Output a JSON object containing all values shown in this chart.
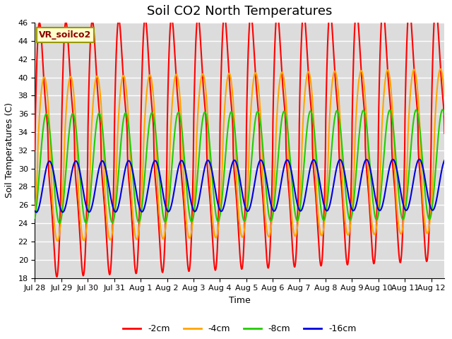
{
  "title": "Soil CO2 North Temperatures",
  "xlabel": "Time",
  "ylabel": "Soil Temperatures (C)",
  "ylim": [
    18,
    46
  ],
  "annotation": "VR_soilco2",
  "bg_color": "#dcdcdc",
  "series_order": [
    "-2cm",
    "-4cm",
    "-8cm",
    "-16cm"
  ],
  "series": {
    "-2cm": {
      "color": "#ff0000",
      "mean": 32.0,
      "amplitude": 12.0,
      "amplitude2": 3.5,
      "phase": 0.0,
      "phase2": 0.0,
      "period": 1.0,
      "trend": 0.12
    },
    "-4cm": {
      "color": "#ffa500",
      "mean": 31.0,
      "amplitude": 9.0,
      "amplitude2": 0.0,
      "phase": 0.1,
      "phase2": 0.0,
      "period": 1.0,
      "trend": 0.06
    },
    "-8cm": {
      "color": "#22cc00",
      "mean": 30.0,
      "amplitude": 6.0,
      "amplitude2": 0.0,
      "phase": 0.18,
      "phase2": 0.0,
      "period": 1.0,
      "trend": 0.03
    },
    "-16cm": {
      "color": "#0000dd",
      "mean": 28.0,
      "amplitude": 2.8,
      "amplitude2": 0.0,
      "phase": 0.3,
      "phase2": 0.0,
      "period": 1.0,
      "trend": 0.015
    }
  },
  "tick_labels": [
    "Jul 28",
    "Jul 29",
    "Jul 30",
    "Jul 31",
    "Aug 1",
    "Aug 2",
    "Aug 3",
    "Aug 4",
    "Aug 5",
    "Aug 6",
    "Aug 7",
    "Aug 8",
    "Aug 9",
    "Aug 10",
    "Aug 11",
    "Aug 12"
  ],
  "yticks": [
    18,
    20,
    22,
    24,
    26,
    28,
    30,
    32,
    34,
    36,
    38,
    40,
    42,
    44,
    46
  ],
  "linewidth": 1.5,
  "grid_color": "#ffffff",
  "title_fontsize": 13,
  "axis_fontsize": 9,
  "tick_fontsize": 8
}
